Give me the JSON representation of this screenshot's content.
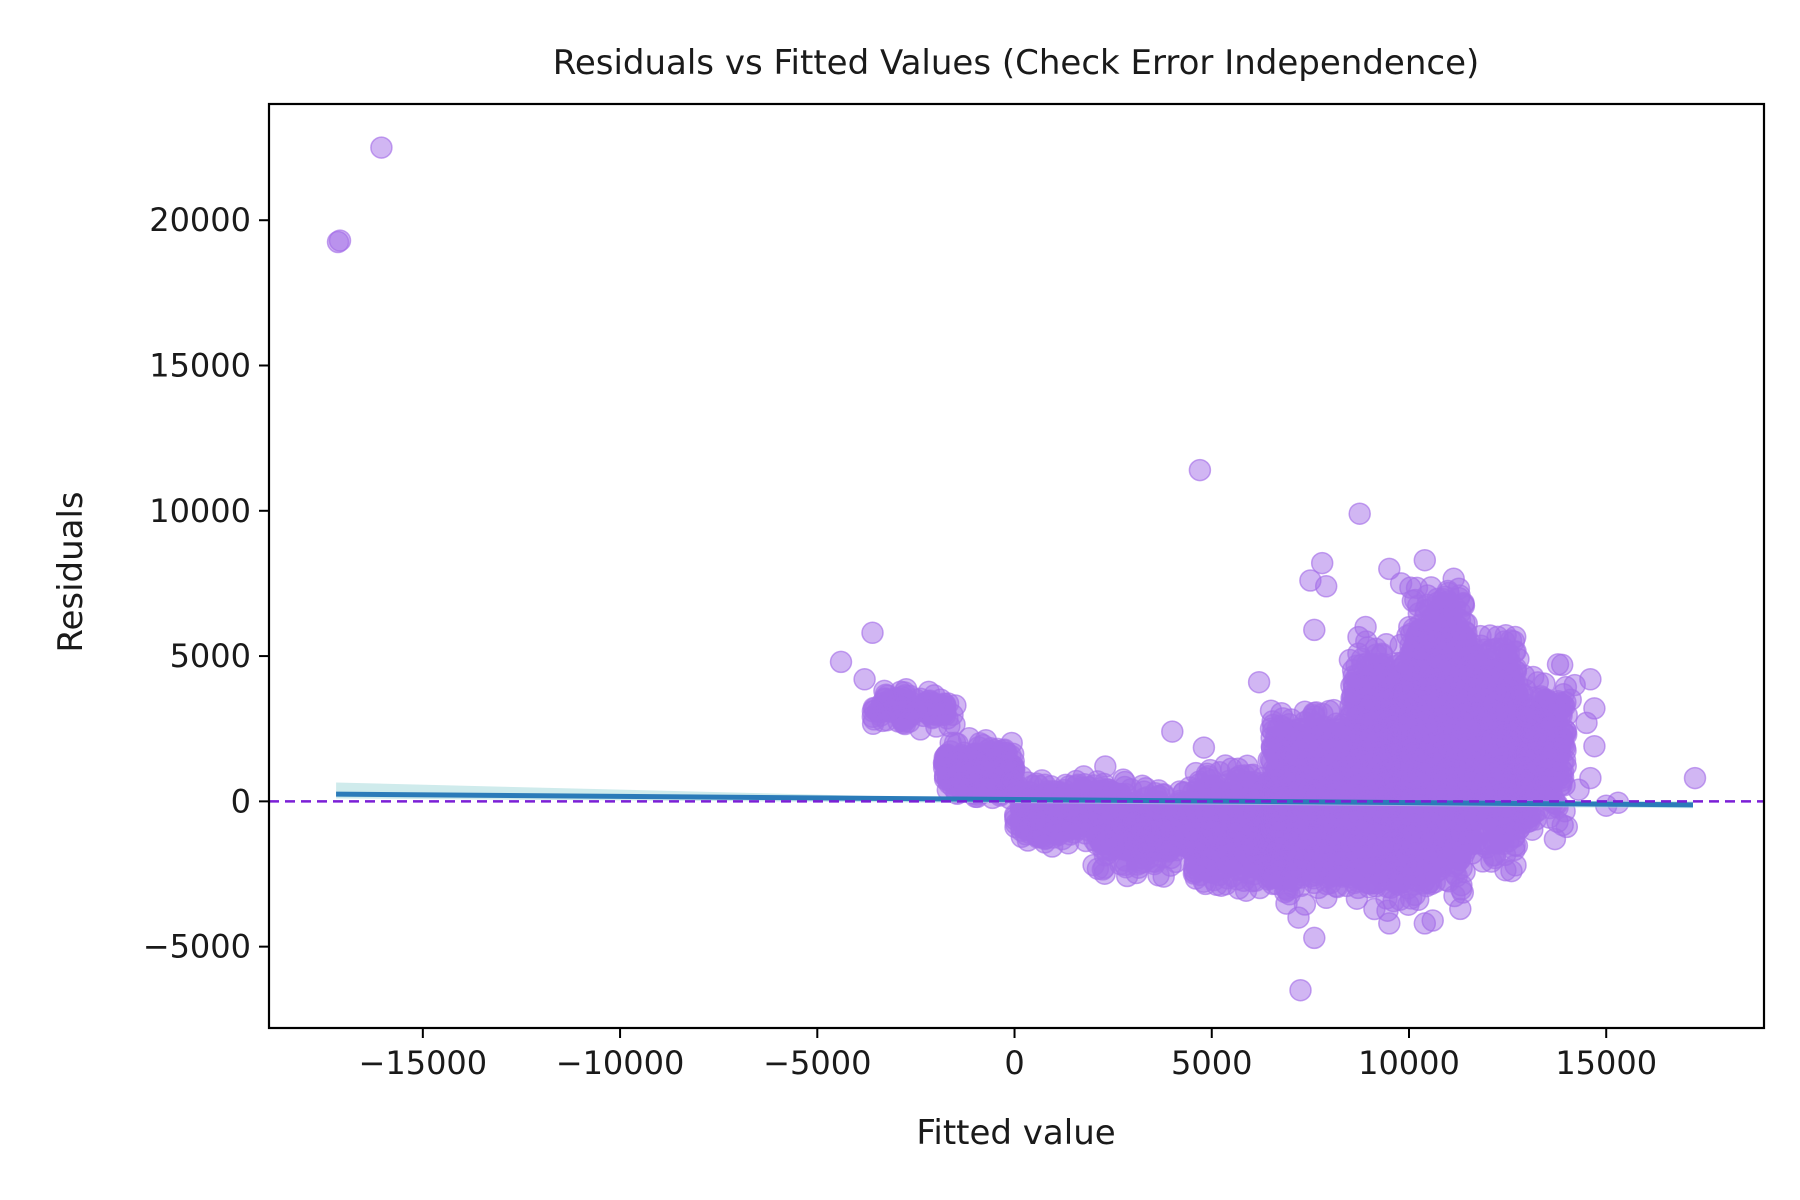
{
  "chart_data": {
    "type": "scatter",
    "title": "Residuals vs Fitted Values (Check Error Independence)",
    "xlabel": "Fitted value",
    "ylabel": "Residuals",
    "xlim": [
      -18900,
      19000
    ],
    "ylim": [
      -7800,
      24000
    ],
    "xticks": [
      -15000,
      -10000,
      -5000,
      0,
      5000,
      10000,
      15000
    ],
    "xtick_labels": [
      "−15000",
      "−10000",
      "−5000",
      "0",
      "5000",
      "10000",
      "15000"
    ],
    "yticks": [
      -5000,
      0,
      5000,
      10000,
      15000,
      20000
    ],
    "ytick_labels": [
      "−5000",
      "0",
      "5000",
      "10000",
      "15000",
      "20000"
    ],
    "grid": false,
    "colors": {
      "points": "#a46ee8",
      "trend": "#2b7bb9",
      "trend_band": "#a8dadc",
      "zero_line": "#7b1fd6"
    },
    "zero_line": {
      "y": 0,
      "style": "dashed"
    },
    "trend_line": [
      [
        -17200,
        250
      ],
      [
        17200,
        -120
      ]
    ],
    "clusters": [
      {
        "xmin": -3600,
        "xmax": -1500,
        "ymin": 2400,
        "ymax": 3900,
        "n": 120
      },
      {
        "xmin": -1800,
        "xmax": 0,
        "ymin": 0,
        "ymax": 2200,
        "n": 260
      },
      {
        "xmin": 0,
        "xmax": 2500,
        "ymin": -1600,
        "ymax": 900,
        "n": 320
      },
      {
        "xmin": 2000,
        "xmax": 5000,
        "ymin": -2600,
        "ymax": 800,
        "n": 420
      },
      {
        "xmin": 4500,
        "xmax": 7000,
        "ymin": -3300,
        "ymax": 1500,
        "n": 520
      },
      {
        "xmin": 6500,
        "xmax": 8500,
        "ymin": -3600,
        "ymax": 3500,
        "n": 700
      },
      {
        "xmin": 8500,
        "xmax": 10000,
        "ymin": -3800,
        "ymax": 5800,
        "n": 900
      },
      {
        "xmin": 10000,
        "xmax": 11500,
        "ymin": -3700,
        "ymax": 7800,
        "n": 1000
      },
      {
        "xmin": 11500,
        "xmax": 12800,
        "ymin": -2500,
        "ymax": 6200,
        "n": 600
      },
      {
        "xmin": 12800,
        "xmax": 14000,
        "ymin": -1200,
        "ymax": 5000,
        "n": 260
      }
    ],
    "points": [
      [
        -17100,
        19300
      ],
      [
        -17150,
        19250
      ],
      [
        -16050,
        22500
      ],
      [
        4700,
        11400
      ],
      [
        8750,
        9900
      ],
      [
        -4400,
        4800
      ],
      [
        -3600,
        5800
      ],
      [
        -3800,
        4200
      ],
      [
        -3300,
        3800
      ],
      [
        -1500,
        3300
      ],
      [
        2300,
        1200
      ],
      [
        4000,
        2400
      ],
      [
        4800,
        1850
      ],
      [
        5200,
        1000
      ],
      [
        6200,
        4100
      ],
      [
        7500,
        7600
      ],
      [
        7800,
        8200
      ],
      [
        7900,
        7400
      ],
      [
        7600,
        5900
      ],
      [
        8900,
        6000
      ],
      [
        9500,
        8000
      ],
      [
        10400,
        8300
      ],
      [
        9800,
        7500
      ],
      [
        7250,
        -6500
      ],
      [
        7600,
        -4700
      ],
      [
        7200,
        -4000
      ],
      [
        9500,
        -4200
      ],
      [
        10400,
        -4200
      ],
      [
        10600,
        -4100
      ],
      [
        11300,
        -3700
      ],
      [
        12600,
        -2400
      ],
      [
        12700,
        -2200
      ],
      [
        13700,
        -1300
      ],
      [
        12300,
        -1300
      ],
      [
        12500,
        -600
      ],
      [
        14200,
        4000
      ],
      [
        14600,
        4200
      ],
      [
        14700,
        3200
      ],
      [
        14500,
        2700
      ],
      [
        14700,
        1900
      ],
      [
        14600,
        800
      ],
      [
        14300,
        400
      ],
      [
        15000,
        -150
      ],
      [
        15300,
        -50
      ],
      [
        17250,
        800
      ],
      [
        13500,
        3500
      ],
      [
        13900,
        2000
      ],
      [
        14100,
        3500
      ]
    ]
  }
}
